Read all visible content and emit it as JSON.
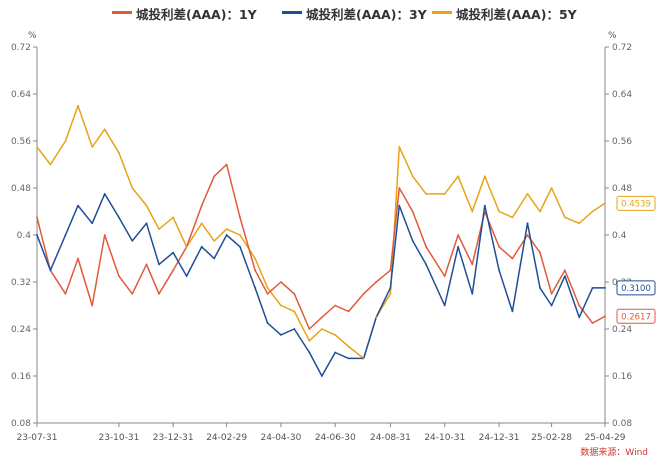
{
  "chart_data": {
    "type": "line",
    "legend": {
      "placement": "top-center",
      "entries": [
        "城投利差(AAA)：1Y",
        "城投利差(AAA)：3Y",
        "城投利差(AAA)：5Y"
      ]
    },
    "y_unit_left": "%",
    "y_unit_right": "%",
    "ylim": [
      0.08,
      0.72
    ],
    "y_ticks": [
      "0.08",
      "0.16",
      "0.24",
      "0.32",
      "0.4",
      "0.48",
      "0.56",
      "0.64",
      "0.72"
    ],
    "x_range": [
      "2023-07-31",
      "2025-04-29"
    ],
    "x_ticks": [
      {
        "label": "23-07-31",
        "date": "2023-07-31"
      },
      {
        "label": "23-10-31",
        "date": "2023-10-31"
      },
      {
        "label": "23-12-31",
        "date": "2023-12-31"
      },
      {
        "label": "24-02-29",
        "date": "2024-02-29"
      },
      {
        "label": "24-04-30",
        "date": "2024-04-30"
      },
      {
        "label": "24-06-30",
        "date": "2024-06-30"
      },
      {
        "label": "24-08-31",
        "date": "2024-08-31"
      },
      {
        "label": "24-10-31",
        "date": "2024-10-31"
      },
      {
        "label": "24-12-31",
        "date": "2024-12-31"
      },
      {
        "label": "25-02-28",
        "date": "2025-02-28"
      },
      {
        "label": "25-04-29",
        "date": "2025-04-29"
      }
    ],
    "grid": false,
    "series": [
      {
        "name": "城投利差(AAA)：1Y",
        "color": "#e05a3c",
        "last_value_label": "0.2617",
        "points": [
          [
            "2023-07-31",
            0.43
          ],
          [
            "2023-08-15",
            0.34
          ],
          [
            "2023-09-01",
            0.3
          ],
          [
            "2023-09-15",
            0.36
          ],
          [
            "2023-10-01",
            0.28
          ],
          [
            "2023-10-15",
            0.4
          ],
          [
            "2023-10-31",
            0.33
          ],
          [
            "2023-11-15",
            0.3
          ],
          [
            "2023-12-01",
            0.35
          ],
          [
            "2023-12-15",
            0.3
          ],
          [
            "2023-12-31",
            0.34
          ],
          [
            "2024-01-15",
            0.38
          ],
          [
            "2024-02-01",
            0.45
          ],
          [
            "2024-02-15",
            0.5
          ],
          [
            "2024-02-29",
            0.52
          ],
          [
            "2024-03-15",
            0.43
          ],
          [
            "2024-04-01",
            0.34
          ],
          [
            "2024-04-15",
            0.3
          ],
          [
            "2024-04-30",
            0.32
          ],
          [
            "2024-05-15",
            0.3
          ],
          [
            "2024-06-01",
            0.24
          ],
          [
            "2024-06-15",
            0.26
          ],
          [
            "2024-06-30",
            0.28
          ],
          [
            "2024-07-15",
            0.27
          ],
          [
            "2024-08-01",
            0.3
          ],
          [
            "2024-08-15",
            0.32
          ],
          [
            "2024-08-31",
            0.34
          ],
          [
            "2024-09-10",
            0.48
          ],
          [
            "2024-09-25",
            0.44
          ],
          [
            "2024-10-10",
            0.38
          ],
          [
            "2024-10-31",
            0.33
          ],
          [
            "2024-11-15",
            0.4
          ],
          [
            "2024-12-01",
            0.35
          ],
          [
            "2024-12-15",
            0.44
          ],
          [
            "2024-12-31",
            0.38
          ],
          [
            "2025-01-15",
            0.36
          ],
          [
            "2025-02-01",
            0.4
          ],
          [
            "2025-02-15",
            0.37
          ],
          [
            "2025-02-28",
            0.3
          ],
          [
            "2025-03-15",
            0.34
          ],
          [
            "2025-03-31",
            0.28
          ],
          [
            "2025-04-15",
            0.25
          ],
          [
            "2025-04-29",
            0.2617
          ]
        ]
      },
      {
        "name": "城投利差(AAA)：3Y",
        "color": "#1f4e99",
        "last_value_label": "0.3100",
        "points": [
          [
            "2023-07-31",
            0.4
          ],
          [
            "2023-08-15",
            0.34
          ],
          [
            "2023-09-01",
            0.4
          ],
          [
            "2023-09-15",
            0.45
          ],
          [
            "2023-10-01",
            0.42
          ],
          [
            "2023-10-15",
            0.47
          ],
          [
            "2023-10-31",
            0.43
          ],
          [
            "2023-11-15",
            0.39
          ],
          [
            "2023-12-01",
            0.42
          ],
          [
            "2023-12-15",
            0.35
          ],
          [
            "2023-12-31",
            0.37
          ],
          [
            "2024-01-15",
            0.33
          ],
          [
            "2024-02-01",
            0.38
          ],
          [
            "2024-02-15",
            0.36
          ],
          [
            "2024-02-29",
            0.4
          ],
          [
            "2024-03-15",
            0.38
          ],
          [
            "2024-04-01",
            0.31
          ],
          [
            "2024-04-15",
            0.25
          ],
          [
            "2024-04-30",
            0.23
          ],
          [
            "2024-05-15",
            0.24
          ],
          [
            "2024-06-01",
            0.2
          ],
          [
            "2024-06-15",
            0.16
          ],
          [
            "2024-06-30",
            0.2
          ],
          [
            "2024-07-15",
            0.19
          ],
          [
            "2024-08-01",
            0.19
          ],
          [
            "2024-08-15",
            0.26
          ],
          [
            "2024-08-31",
            0.31
          ],
          [
            "2024-09-10",
            0.45
          ],
          [
            "2024-09-25",
            0.39
          ],
          [
            "2024-10-10",
            0.35
          ],
          [
            "2024-10-31",
            0.28
          ],
          [
            "2024-11-15",
            0.38
          ],
          [
            "2024-12-01",
            0.3
          ],
          [
            "2024-12-15",
            0.45
          ],
          [
            "2024-12-31",
            0.34
          ],
          [
            "2025-01-15",
            0.27
          ],
          [
            "2025-02-01",
            0.42
          ],
          [
            "2025-02-15",
            0.31
          ],
          [
            "2025-02-28",
            0.28
          ],
          [
            "2025-03-15",
            0.33
          ],
          [
            "2025-03-31",
            0.26
          ],
          [
            "2025-04-15",
            0.31
          ],
          [
            "2025-04-29",
            0.31
          ]
        ]
      },
      {
        "name": "城投利差(AAA)：5Y",
        "color": "#e8a317",
        "last_value_label": "0.4539",
        "points": [
          [
            "2023-07-31",
            0.55
          ],
          [
            "2023-08-15",
            0.52
          ],
          [
            "2023-09-01",
            0.56
          ],
          [
            "2023-09-15",
            0.62
          ],
          [
            "2023-10-01",
            0.55
          ],
          [
            "2023-10-15",
            0.58
          ],
          [
            "2023-10-31",
            0.54
          ],
          [
            "2023-11-15",
            0.48
          ],
          [
            "2023-12-01",
            0.45
          ],
          [
            "2023-12-15",
            0.41
          ],
          [
            "2023-12-31",
            0.43
          ],
          [
            "2024-01-15",
            0.38
          ],
          [
            "2024-02-01",
            0.42
          ],
          [
            "2024-02-15",
            0.39
          ],
          [
            "2024-02-29",
            0.41
          ],
          [
            "2024-03-15",
            0.4
          ],
          [
            "2024-04-01",
            0.36
          ],
          [
            "2024-04-15",
            0.31
          ],
          [
            "2024-04-30",
            0.28
          ],
          [
            "2024-05-15",
            0.27
          ],
          [
            "2024-06-01",
            0.22
          ],
          [
            "2024-06-15",
            0.24
          ],
          [
            "2024-06-30",
            0.23
          ],
          [
            "2024-07-15",
            0.21
          ],
          [
            "2024-08-01",
            0.19
          ],
          [
            "2024-08-15",
            0.26
          ],
          [
            "2024-08-31",
            0.3
          ],
          [
            "2024-09-10",
            0.55
          ],
          [
            "2024-09-25",
            0.5
          ],
          [
            "2024-10-10",
            0.47
          ],
          [
            "2024-10-31",
            0.47
          ],
          [
            "2024-11-15",
            0.5
          ],
          [
            "2024-12-01",
            0.44
          ],
          [
            "2024-12-15",
            0.5
          ],
          [
            "2024-12-31",
            0.44
          ],
          [
            "2025-01-15",
            0.43
          ],
          [
            "2025-02-01",
            0.47
          ],
          [
            "2025-02-15",
            0.44
          ],
          [
            "2025-02-28",
            0.48
          ],
          [
            "2025-03-15",
            0.43
          ],
          [
            "2025-03-31",
            0.42
          ],
          [
            "2025-04-15",
            0.44
          ],
          [
            "2025-04-29",
            0.4539
          ]
        ]
      }
    ],
    "source_note": "数据来源：Wind"
  }
}
